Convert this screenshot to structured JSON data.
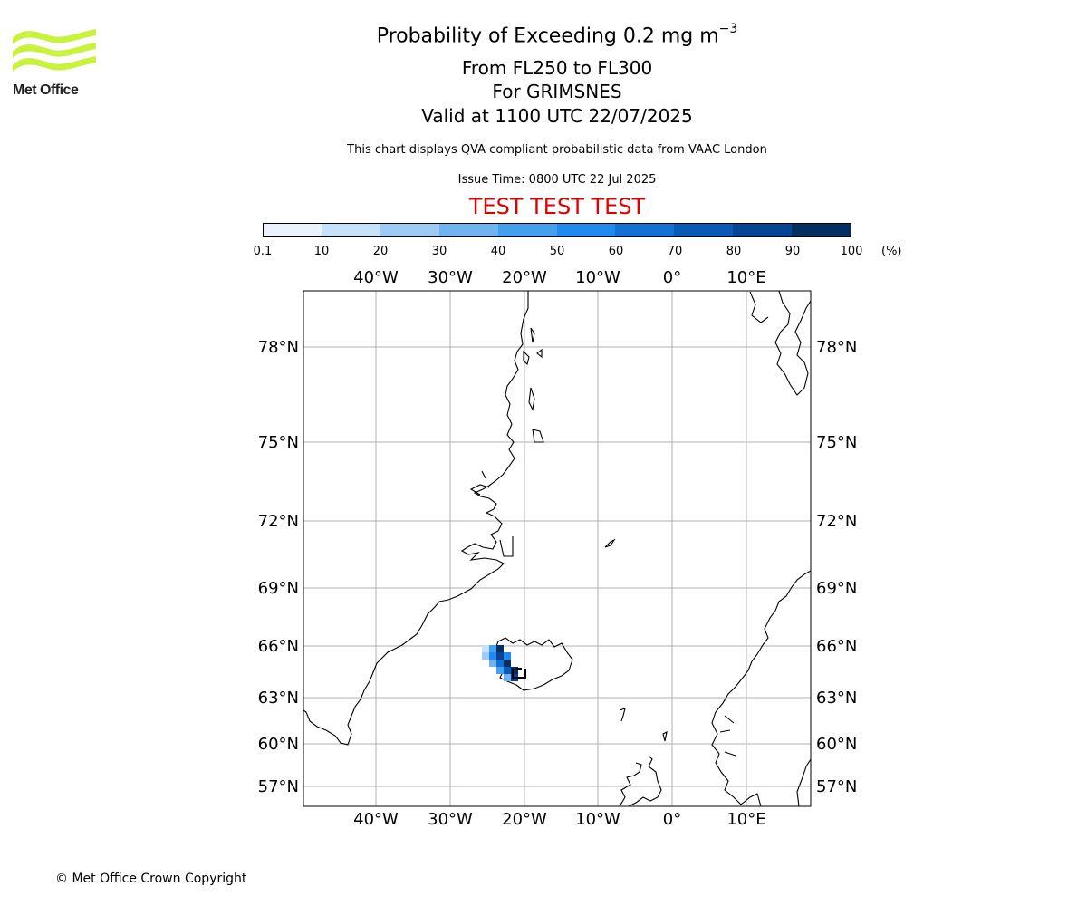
{
  "header": {
    "title_prefix": "Probability of Exceeding 0.2 mg m",
    "title_superscript": "−3",
    "flight_levels": "From FL250 to FL300",
    "volcano": "For GRIMSNES",
    "valid_time": "Valid at 1100 UTC 22/07/2025",
    "note": "This chart displays QVA compliant probabilistic data from VAAC London",
    "issue_time": "Issue Time: 0800 UTC 22 Jul 2025",
    "test_banner": "TEST TEST TEST"
  },
  "logo": {
    "text": "Met Office",
    "wave_color": "#c8f23c"
  },
  "colorbar": {
    "tick_labels": [
      "0.1",
      "10",
      "20",
      "30",
      "40",
      "50",
      "60",
      "70",
      "80",
      "90",
      "100"
    ],
    "unit": "(%)",
    "colors": [
      "#eaf3fd",
      "#c6e1fa",
      "#9dcbf6",
      "#6fb3f2",
      "#44a0ef",
      "#218af0",
      "#1371d6",
      "#095ab6",
      "#054593",
      "#032f62"
    ]
  },
  "map": {
    "longitude_labels": [
      "40°W",
      "30°W",
      "20°W",
      "10°W",
      "0°",
      "10°E"
    ],
    "latitude_labels": [
      "78°N",
      "75°N",
      "72°N",
      "69°N",
      "66°N",
      "63°N",
      "60°N",
      "57°N"
    ],
    "volcano_symbol": "volcano-marker",
    "plume_probability_percent_max": 100
  },
  "footer": {
    "copyright": "© Met Office Crown Copyright"
  }
}
